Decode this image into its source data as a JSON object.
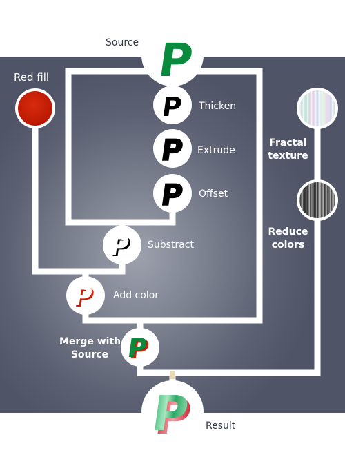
{
  "nodes": {
    "source": {
      "label": "Source",
      "glyph": "P"
    },
    "red_fill": {
      "label": "Red fill"
    },
    "thicken": {
      "label": "Thicken",
      "glyph": "P"
    },
    "extrude": {
      "label": "Extrude",
      "glyph": "P"
    },
    "offset": {
      "label": "Offset",
      "glyph": "P"
    },
    "substract": {
      "label": "Substract",
      "glyph": "P"
    },
    "add_color": {
      "label": "Add color",
      "glyph": "P"
    },
    "merge": {
      "label_line1": "Merge with",
      "label_line2": "Source",
      "glyph": "P"
    },
    "fractal": {
      "label_line1": "Fractal",
      "label_line2": "texture"
    },
    "reduce": {
      "label_line1": "Reduce",
      "label_line2": "colors"
    },
    "result": {
      "label": "Result",
      "glyph": "P"
    }
  },
  "colors": {
    "green": "#0a8a3c",
    "red": "#cc1f08",
    "black": "#000000",
    "connector": "#ffffff",
    "text_dark": "#333a48"
  }
}
